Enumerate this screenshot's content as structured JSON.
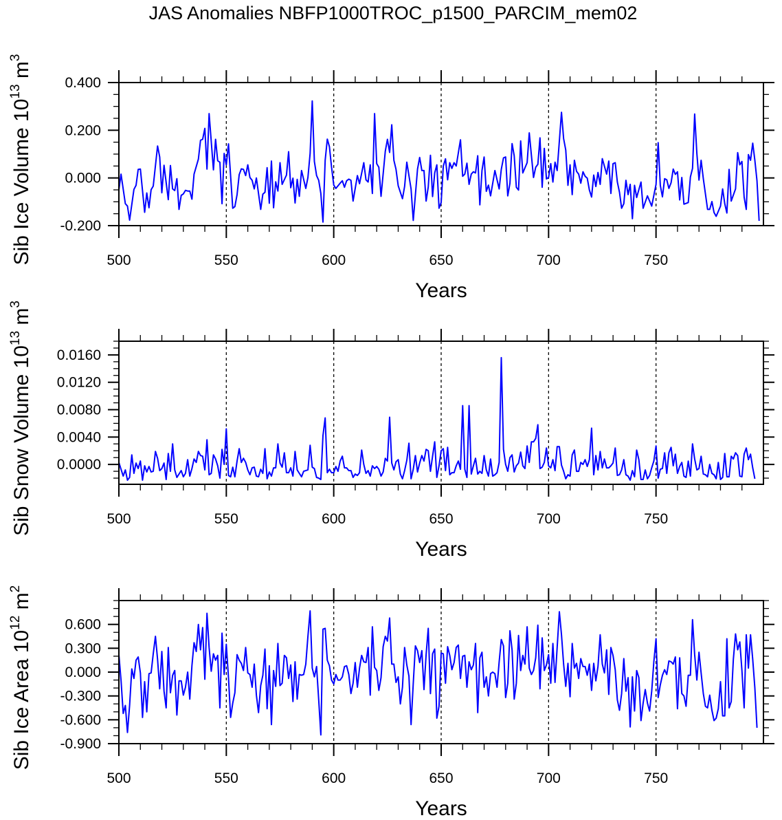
{
  "title": "JAS Anomalies NBFP1000TROC_p1500_PARCIM_mem02",
  "line_color": "#0000ff",
  "chart_data": [
    {
      "type": "line",
      "ylabel": {
        "text": "Sib Ice Volume 10",
        "exp": "13",
        "unit": " m",
        "unit_exp": "3"
      },
      "xlabel": "Years",
      "xlim": [
        500,
        800
      ],
      "ylim": [
        -0.2,
        0.4
      ],
      "xticks": [
        500,
        550,
        600,
        650,
        700,
        750
      ],
      "xtick_labels": [
        "500",
        "550",
        "600",
        "650",
        "700",
        "750"
      ],
      "xminor_step": 10,
      "yticks": [
        0.4,
        0.2,
        0.0,
        -0.2
      ],
      "ytick_labels": [
        "0.400",
        "0.200",
        "0.000",
        "-0.200"
      ],
      "yminor_step": 0.05,
      "reference_lines": [
        550,
        600,
        650,
        700,
        750
      ],
      "x": [
        500,
        501,
        503,
        504,
        505,
        507,
        508,
        509,
        510,
        512,
        513,
        514,
        515,
        516,
        518,
        519,
        520,
        521,
        523,
        524,
        525,
        526,
        527,
        528,
        529,
        530,
        531,
        532,
        533,
        534,
        535,
        537,
        538,
        539,
        540,
        541,
        542,
        544,
        545,
        546,
        547,
        548,
        549,
        550,
        551,
        553,
        554,
        555,
        556,
        557,
        558,
        559,
        560,
        561,
        562,
        563,
        564,
        566,
        567,
        568,
        569,
        570,
        571,
        572,
        573,
        574,
        575,
        576,
        578,
        579,
        580,
        581,
        582,
        583,
        584,
        585,
        587,
        588,
        589,
        590,
        591,
        592,
        593,
        594,
        595,
        596,
        597,
        598,
        599,
        600,
        601,
        603,
        604,
        605,
        606,
        607,
        608,
        609,
        611,
        612,
        614,
        615,
        616,
        617,
        618,
        619,
        620,
        621,
        622,
        624,
        625,
        626,
        627,
        628,
        629,
        630,
        632,
        633,
        634,
        636,
        637,
        639,
        640,
        641,
        642,
        643,
        644,
        645,
        646,
        647,
        648,
        649,
        650,
        651,
        652,
        653,
        654,
        655,
        656,
        657,
        659,
        660,
        661,
        662,
        663,
        664,
        665,
        666,
        667,
        668,
        669,
        670,
        671,
        672,
        673,
        675,
        677,
        678,
        679,
        680,
        681,
        682,
        683,
        684,
        685,
        686,
        687,
        688,
        690,
        691,
        693,
        694,
        695,
        696,
        697,
        698,
        699,
        700,
        701,
        702,
        703,
        704,
        706,
        707,
        708,
        709,
        710,
        711,
        712,
        713,
        714,
        715,
        716,
        717,
        718,
        719,
        720,
        721,
        722,
        723,
        724,
        725,
        727,
        728,
        729,
        730,
        731,
        732,
        733,
        734,
        735,
        736,
        737,
        738,
        739,
        740,
        741,
        743,
        744,
        746,
        748,
        750,
        751,
        752,
        753,
        754,
        755,
        756,
        757,
        758,
        759,
        760,
        761,
        762,
        763,
        765,
        766,
        767,
        768,
        769,
        770,
        771,
        772,
        774,
        775,
        776,
        777,
        778,
        780,
        781,
        782,
        783,
        784,
        785,
        787,
        788,
        789,
        790,
        791,
        792,
        793,
        794,
        795,
        796,
        797,
        798
      ],
      "y": [
        -0.05,
        0.016,
        -0.108,
        -0.118,
        -0.177,
        -0.048,
        -0.031,
        0.036,
        0.037,
        -0.144,
        -0.063,
        -0.125,
        -0.049,
        -0.034,
        0.134,
        0.088,
        -0.062,
        0.053,
        -0.091,
        0.052,
        -0.046,
        -0.053,
        -0.003,
        -0.132,
        -0.073,
        -0.067,
        -0.052,
        -0.055,
        -0.055,
        -0.089,
        0.016,
        0.079,
        0.158,
        0.162,
        0.208,
        0.037,
        0.27,
        0.034,
        0.162,
        0.072,
        0.066,
        -0.108,
        0.103,
        0.055,
        0.143,
        -0.127,
        -0.12,
        -0.07,
        0.014,
        0.038,
        0.036,
        0.01,
        0.055,
        0.002,
        -0.01,
        -0.046,
        0.0,
        -0.132,
        -0.068,
        -0.06,
        0.043,
        -0.106,
        0.071,
        -0.125,
        -0.016,
        -0.055,
        0.064,
        -0.027,
        0.012,
        0.11,
        -0.041,
        -0.001,
        -0.105,
        -0.006,
        -0.077,
        0.031,
        -0.044,
        0.002,
        0.103,
        0.323,
        0.069,
        0.01,
        -0.01,
        -0.065,
        -0.185,
        0.074,
        0.163,
        0.131,
        0.045,
        -0.03,
        -0.044,
        -0.022,
        -0.012,
        -0.039,
        -0.012,
        -0.005,
        -0.01,
        -0.097,
        0.01,
        -0.024,
        0.064,
        -0.008,
        -0.017,
        0.055,
        -0.065,
        0.27,
        0.06,
        0.045,
        -0.077,
        0.112,
        0.162,
        0.107,
        0.223,
        0.074,
        0.036,
        -0.033,
        -0.087,
        -0.036,
        0.066,
        -0.046,
        -0.178,
        0.037,
        0.086,
        0.031,
        0.031,
        -0.097,
        -0.038,
        0.095,
        -0.078,
        0.021,
        0.055,
        -0.127,
        -0.103,
        0.05,
        0.08,
        -0.008,
        0.064,
        0.04,
        0.064,
        0.05,
        0.16,
        0.007,
        0.016,
        0.062,
        -0.027,
        0.016,
        0.026,
        0.021,
        0.093,
        -0.113,
        0.031,
        0.088,
        -0.056,
        -0.03,
        -0.075,
        0.031,
        -0.046,
        0.036,
        0.084,
        0.088,
        -0.075,
        -0.022,
        0.144,
        0.093,
        -0.039,
        -0.051,
        0.155,
        0.021,
        0.064,
        0.189,
        0.002,
        0.045,
        0.057,
        0.168,
        -0.039,
        0.124,
        -0.004,
        0.002,
        0.06,
        -0.017,
        0.066,
        0.031,
        0.275,
        0.165,
        0.117,
        -0.031,
        0.055,
        -0.07,
        0.074,
        0.028,
        0.016,
        -0.022,
        0.026,
        0.007,
        -0.001,
        -0.051,
        -0.08,
        0.012,
        -0.036,
        0.023,
        -0.027,
        0.081,
        0.016,
        0.071,
        -0.065,
        0.06,
        0.064,
        -0.017,
        -0.06,
        -0.127,
        -0.108,
        -0.01,
        -0.07,
        -0.027,
        -0.171,
        -0.031,
        -0.082,
        -0.017,
        -0.127,
        -0.075,
        -0.118,
        -0.027,
        0.148,
        -0.031,
        -0.079,
        -0.003,
        -0.008,
        -0.044,
        -0.02,
        0.037,
        0.015,
        0.026,
        -0.092,
        0.002,
        -0.11,
        -0.103,
        0.004,
        0.04,
        0.268,
        0.103,
        -0.009,
        0.074,
        -0.003,
        -0.132,
        -0.132,
        -0.099,
        -0.145,
        -0.161,
        -0.118,
        -0.046,
        -0.108,
        -0.147,
        0.036,
        -0.097,
        -0.046,
        0.106,
        0.055,
        0.069,
        -0.081,
        -0.132,
        0.098,
        0.074,
        0.146,
        0.074,
        -0.012,
        -0.18
      ]
    },
    {
      "type": "line",
      "ylabel": {
        "text": "Sib Snow Volume 10",
        "exp": "13",
        "unit": " m",
        "unit_exp": "3"
      },
      "xlabel": "Years",
      "xlim": [
        500,
        800
      ],
      "ylim": [
        -0.0029,
        0.018
      ],
      "xticks": [
        500,
        550,
        600,
        650,
        700,
        750
      ],
      "xtick_labels": [
        "500",
        "550",
        "600",
        "650",
        "700",
        "750"
      ],
      "xminor_step": 10,
      "yticks": [
        0.016,
        0.012,
        0.008,
        0.004,
        0.0
      ],
      "ytick_labels": [
        "0.0160",
        "0.0120",
        "0.0080",
        "0.0040",
        "0.0000"
      ],
      "yminor_step": 0.001,
      "reference_lines": [
        550,
        600,
        650,
        700,
        750
      ],
      "x_start": 500,
      "y": [
        0.0003,
        -0.0007,
        -0.0017,
        -0.0008,
        -0.0023,
        -0.0019,
        0.0014,
        -0.0013,
        0.0002,
        -0.0006,
        0.0005,
        -0.0023,
        -0.0002,
        -0.0011,
        -0.0003,
        -0.0011,
        -0.001,
        0.0019,
        0.0009,
        -0.0009,
        -0.0006,
        0.0002,
        -0.0022,
        0.0016,
        -0.001,
        0.003,
        -0.0008,
        -0.0019,
        -0.0014,
        -0.0009,
        -0.0018,
        -0.0013,
        0.0007,
        -0.0017,
        -0.0006,
        0.0008,
        0.0003,
        0.0019,
        0.0013,
        0.0012,
        -0.0008,
        0.0036,
        -0.0015,
        -0.0013,
        0.0014,
        0.0008,
        -0.0002,
        -0.002,
        0.0022,
        0.0,
        0.0052,
        -0.0016,
        -0.0018,
        -0.0004,
        -0.0018,
        0.0005,
        0.0023,
        0.0003,
        0.0009,
        0.0003,
        -0.0008,
        -0.0015,
        -0.0005,
        -0.0004,
        -0.0017,
        -0.0018,
        -0.0007,
        -0.0013,
        0.0023,
        -0.0021,
        -0.0011,
        -0.0017,
        -0.0005,
        -0.0005,
        0.003,
        0.0002,
        -0.0004,
        0.0017,
        -0.0012,
        -0.0012,
        -0.0005,
        -0.0017,
        0.0019,
        -0.0008,
        -0.0013,
        -0.0018,
        -0.001,
        -0.0009,
        -0.0008,
        0.0028,
        -0.0004,
        -0.0006,
        -0.0019,
        -0.002,
        -0.0022,
        0.0042,
        0.0068,
        -0.0012,
        -0.0007,
        -0.0012,
        -0.0012,
        -0.0003,
        -0.001,
        0.0005,
        0.0012,
        -0.0005,
        -0.0005,
        -0.0009,
        -0.0009,
        -0.0019,
        -0.0014,
        -0.0016,
        -0.0012,
        0.0021,
        0.0,
        -0.0013,
        -0.0009,
        -0.0017,
        -0.0002,
        -0.0006,
        -0.0003,
        -0.0007,
        -0.0017,
        -0.0011,
        0.0009,
        0.0005,
        0.0069,
        0.0002,
        -0.0008,
        0.0004,
        0.0007,
        -0.0014,
        -0.0021,
        -0.0009,
        0.0006,
        0.0031,
        -0.0021,
        -0.0007,
        0.0013,
        -0.0011,
        0.0002,
        0.0013,
        0.0005,
        0.0022,
        0.002,
        -0.001,
        0.0012,
        0.0033,
        -0.0019,
        -0.0002,
        0.002,
        0.0023,
        -0.0009,
        0.0025,
        -0.0015,
        -0.0012,
        -0.0012,
        -0.0002,
        0.0005,
        -0.0007,
        0.0086,
        -0.0007,
        -0.0019,
        0.0086,
        -0.0014,
        -0.0002,
        0.0009,
        -0.0014,
        -0.001,
        -0.0013,
        0.0013,
        -0.0008,
        -0.0017,
        0.0008,
        -0.0017,
        -0.0015,
        -0.0012,
        0.0003,
        0.0156,
        0.0022,
        0.0,
        -0.001,
        0.001,
        0.0014,
        -0.0011,
        -0.0002,
        0.0002,
        0.0018,
        -0.0002,
        -0.0006,
        0.0027,
        0.0003,
        0.0033,
        0.0033,
        0.0038,
        0.0058,
        -0.0006,
        -0.0004,
        0.0003,
        0.0024,
        -0.0002,
        -0.0005,
        0.0007,
        -0.0009,
        0.0026,
        0.0026,
        -0.0001,
        -0.001,
        -0.0021,
        -0.0015,
        -0.0017,
        0.0014,
        0.0021,
        -0.001,
        -0.001,
        0.0003,
        0.0,
        0.0007,
        -0.0003,
        0.0007,
        0.0053,
        -0.0015,
        0.0013,
        -0.0008,
        0.0019,
        -0.0005,
        0.0008,
        -0.0005,
        -0.0005,
        -0.0002,
        0.0002,
        0.0024,
        -0.0016,
        -0.0015,
        -0.0008,
        0.0007,
        -0.0015,
        -0.0017,
        -0.0023,
        -0.0009,
        -0.0018,
        0.0021,
        0.0007,
        -0.0022,
        -0.0022,
        -0.0008,
        -0.0021,
        -0.0016,
        -0.0005,
        0.0005,
        0.0027,
        -0.002,
        -0.0007,
        -0.0006,
        0.0017,
        -0.0013,
        0.0017,
        0.0025,
        -0.0002,
        0.0015,
        -0.0013,
        -0.0003,
        0.0003,
        -0.0017,
        -0.0019,
        0.0005,
        -0.0017,
        0.003,
        0.0008,
        -0.0008,
        -0.0006,
        0.0012,
        -0.0014,
        -0.0015,
        -0.0018,
        0.0,
        -0.0013,
        -0.0015,
        -0.0021,
        0.0003,
        -0.0022,
        -0.0019,
        0.0016,
        -0.0018,
        -0.0018,
        0.0012,
        0.0008,
        0.0017,
        0.0013,
        -0.0017,
        -0.0018,
        0.0015,
        0.0024,
        0.0007,
        0.0015,
        -0.0005,
        -0.0021
      ]
    },
    {
      "type": "line",
      "ylabel": {
        "text": "Sib Ice Area 10",
        "exp": "12",
        "unit": " m",
        "unit_exp": "2"
      },
      "xlabel": "Years",
      "xlim": [
        500,
        800
      ],
      "ylim": [
        -0.9,
        0.9
      ],
      "xticks": [
        500,
        550,
        600,
        650,
        700,
        750
      ],
      "xtick_labels": [
        "500",
        "550",
        "600",
        "650",
        "700",
        "750"
      ],
      "xminor_step": 10,
      "yticks": [
        0.6,
        0.3,
        0.0,
        -0.3,
        -0.6,
        -0.9
      ],
      "ytick_labels": [
        "0.600",
        "0.300",
        "0.000",
        "-0.300",
        "-0.600",
        "-0.900"
      ],
      "yminor_step": 0.1,
      "reference_lines": [
        550,
        600,
        650,
        700,
        750
      ],
      "x_start": 500,
      "y": [
        0.22,
        -0.1,
        -0.52,
        -0.42,
        -0.76,
        -0.42,
        0.04,
        -0.08,
        0.15,
        0.19,
        -0.01,
        -0.57,
        -0.12,
        -0.5,
        -0.02,
        -0.01,
        0.23,
        0.45,
        0.16,
        -0.21,
        0.26,
        -0.24,
        -0.45,
        0.31,
        -0.26,
        -0.04,
        0.02,
        -0.54,
        -0.11,
        -0.11,
        -0.29,
        -0.19,
        0.0,
        -0.34,
        0.08,
        0.37,
        0.26,
        0.6,
        0.28,
        0.56,
        -0.09,
        0.74,
        0.31,
        0.01,
        0.23,
        0.15,
        0.21,
        -0.45,
        0.49,
        -0.03,
        0.35,
        -0.07,
        -0.57,
        -0.39,
        -0.26,
        0.22,
        0.15,
        0.11,
        0.02,
        0.31,
        -0.01,
        -0.03,
        -0.19,
        0.1,
        -0.29,
        -0.51,
        -0.17,
        -0.04,
        0.29,
        -0.46,
        0.08,
        -0.66,
        0.02,
        -0.18,
        0.36,
        -0.17,
        -0.14,
        0.21,
        0.18,
        -0.08,
        0.09,
        -0.37,
        0.13,
        -0.34,
        -0.03,
        -0.04,
        -0.03,
        0.1,
        0.45,
        0.77,
        0.05,
        -0.06,
        0.07,
        -0.35,
        -0.79,
        0.54,
        0.55,
        0.15,
        0.08,
        -0.1,
        -0.15,
        -0.03,
        -0.1,
        -0.1,
        -0.06,
        0.07,
        0.08,
        -0.03,
        -0.27,
        -0.14,
        0.12,
        -0.19,
        0.05,
        0.21,
        0.13,
        0.12,
        0.31,
        -0.29,
        0.57,
        0.06,
        0.02,
        -0.23,
        -0.07,
        0.32,
        0.45,
        0.39,
        0.68,
        0.1,
        0.1,
        -0.13,
        -0.06,
        -0.4,
        -0.19,
        0.31,
        0.09,
        -0.05,
        -0.66,
        -0.14,
        0.33,
        0.27,
        0.12,
        0.27,
        -0.22,
        0.22,
        0.55,
        -0.27,
        0.23,
        0.29,
        -0.58,
        -0.43,
        0.24,
        0.23,
        -0.14,
        0.32,
        0.21,
        0.03,
        0.12,
        0.31,
        0.34,
        -0.08,
        0.2,
        0.21,
        -0.19,
        0.13,
        0.03,
        0.09,
        0.36,
        -0.51,
        0.18,
        0.25,
        -0.19,
        -0.06,
        -0.3,
        -0.02,
        0.0,
        -0.02,
        -0.19,
        0.13,
        0.41,
        0.33,
        -0.32,
        -0.14,
        0.52,
        0.28,
        -0.34,
        -0.14,
        0.46,
        0.02,
        0.21,
        0.1,
        0.57,
        0.05,
        -0.03,
        0.02,
        0.18,
        0.59,
        -0.21,
        0.43,
        0.02,
        0.09,
        0.22,
        -0.14,
        0.36,
        -0.13,
        0.31,
        0.76,
        0.47,
        0.1,
        -0.18,
        0.11,
        -0.31,
        0.36,
        0.05,
        0.11,
        -0.08,
        0.17,
        0.07,
        0.07,
        -0.04,
        0.1,
        -0.23,
        0.11,
        -0.11,
        0.07,
        0.47,
        0.1,
        -0.01,
        0.28,
        -0.28,
        0.31,
        0.21,
        0.03,
        -0.35,
        -0.48,
        -0.27,
        0.17,
        -0.24,
        -0.07,
        -0.69,
        -0.06,
        -0.49,
        0.02,
        -0.07,
        -0.61,
        -0.39,
        -0.22,
        -0.39,
        -0.49,
        -0.24,
        0.13,
        0.42,
        -0.32,
        -0.16,
        -0.04,
        0.03,
        -0.03,
        0.14,
        0.13,
        0.1,
        0.19,
        -0.46,
        0.18,
        -0.27,
        -0.3,
        -0.43,
        -0.04,
        -0.04,
        0.66,
        0.22,
        -0.1,
        0.25,
        -0.01,
        -0.27,
        -0.43,
        -0.45,
        -0.29,
        -0.48,
        -0.61,
        -0.58,
        -0.46,
        -0.12,
        -0.55,
        -0.55,
        0.42,
        -0.45,
        -0.37,
        0.16,
        0.48,
        0.28,
        0.38,
        0.02,
        -0.45,
        0.47,
        0.05,
        0.47,
        0.16,
        -0.2,
        -0.7
      ]
    }
  ]
}
